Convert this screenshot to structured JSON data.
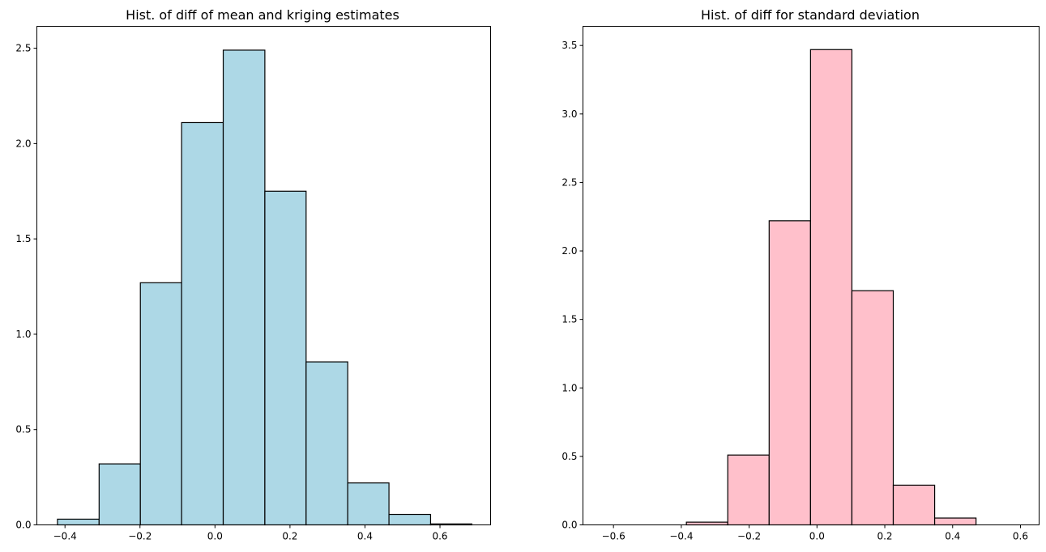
{
  "chart_data": [
    {
      "type": "bar",
      "title": "Hist. of diff of mean and kriging estimates",
      "xlabel": "",
      "ylabel": "",
      "bar_color": "#add8e6",
      "edge_color": "#000000",
      "xlim": [
        -0.475,
        0.735
      ],
      "ylim": [
        0,
        2.615
      ],
      "x_ticks": [
        -0.4,
        -0.2,
        0.0,
        0.2,
        0.4,
        0.6
      ],
      "x_tick_labels": [
        "−0.4",
        "−0.2",
        "0.0",
        "0.2",
        "0.4",
        "0.6"
      ],
      "y_ticks": [
        0.0,
        0.5,
        1.0,
        1.5,
        2.0,
        2.5
      ],
      "y_tick_labels": [
        "0.0",
        "0.5",
        "1.0",
        "1.5",
        "2.0",
        "2.5"
      ],
      "bins": [
        {
          "x0": -0.42,
          "x1": -0.309,
          "value": 0.03
        },
        {
          "x0": -0.309,
          "x1": -0.199,
          "value": 0.32
        },
        {
          "x0": -0.199,
          "x1": -0.089,
          "value": 1.27
        },
        {
          "x0": -0.089,
          "x1": 0.022,
          "value": 2.11
        },
        {
          "x0": 0.022,
          "x1": 0.133,
          "value": 2.49
        },
        {
          "x0": 0.133,
          "x1": 0.243,
          "value": 1.75
        },
        {
          "x0": 0.243,
          "x1": 0.354,
          "value": 0.855
        },
        {
          "x0": 0.354,
          "x1": 0.464,
          "value": 0.22
        },
        {
          "x0": 0.464,
          "x1": 0.575,
          "value": 0.055
        },
        {
          "x0": 0.575,
          "x1": 0.685,
          "value": 0.005
        }
      ]
    },
    {
      "type": "bar",
      "title": "Hist. of diff for standard deviation",
      "xlabel": "",
      "ylabel": "",
      "bar_color": "#ffc0cb",
      "edge_color": "#000000",
      "xlim": [
        -0.69,
        0.655
      ],
      "ylim": [
        0,
        3.64
      ],
      "x_ticks": [
        -0.6,
        -0.4,
        -0.2,
        0.0,
        0.2,
        0.4,
        0.6
      ],
      "x_tick_labels": [
        "−0.6",
        "−0.4",
        "−0.2",
        "0.0",
        "0.2",
        "0.4",
        "0.6"
      ],
      "y_ticks": [
        0.0,
        0.5,
        1.0,
        1.5,
        2.0,
        2.5,
        3.0,
        3.5
      ],
      "y_tick_labels": [
        "0.0",
        "0.5",
        "1.0",
        "1.5",
        "2.0",
        "2.5",
        "3.0",
        "3.5"
      ],
      "bins": [
        {
          "x0": -0.629,
          "x1": -0.507,
          "value": 0.0
        },
        {
          "x0": -0.507,
          "x1": -0.385,
          "value": 0.0
        },
        {
          "x0": -0.385,
          "x1": -0.263,
          "value": 0.02
        },
        {
          "x0": -0.263,
          "x1": -0.141,
          "value": 0.51
        },
        {
          "x0": -0.141,
          "x1": -0.019,
          "value": 2.22
        },
        {
          "x0": -0.019,
          "x1": 0.103,
          "value": 3.47
        },
        {
          "x0": 0.103,
          "x1": 0.225,
          "value": 1.71
        },
        {
          "x0": 0.225,
          "x1": 0.347,
          "value": 0.29
        },
        {
          "x0": 0.347,
          "x1": 0.469,
          "value": 0.05
        },
        {
          "x0": 0.469,
          "x1": 0.591,
          "value": 0.0
        }
      ]
    }
  ]
}
